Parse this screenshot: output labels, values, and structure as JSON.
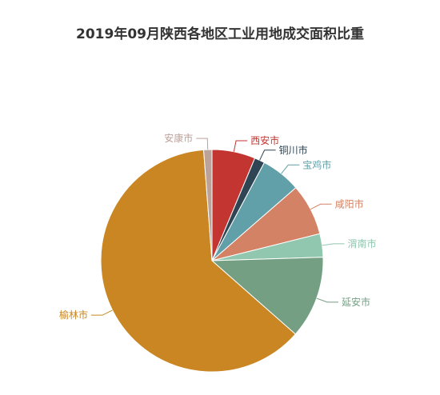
{
  "chart_data": {
    "type": "pie",
    "title": "2019年09月陕西各地区工业用地成交面积比重",
    "slices": [
      {
        "label": "西安市",
        "value": 6.3,
        "color": "#c23531"
      },
      {
        "label": "铜川市",
        "value": 1.5,
        "color": "#2f4554"
      },
      {
        "label": "宝鸡市",
        "value": 5.8,
        "color": "#61a0a8"
      },
      {
        "label": "咸阳市",
        "value": 7.5,
        "color": "#d48265"
      },
      {
        "label": "渭南市",
        "value": 3.4,
        "color": "#91c7ae"
      },
      {
        "label": "延安市",
        "value": 12.0,
        "color": "#749f83"
      },
      {
        "label": "榆林市",
        "value": 62.3,
        "color": "#ca8622"
      },
      {
        "label": "安康市",
        "value": 1.2,
        "color": "#bda29a"
      }
    ]
  }
}
